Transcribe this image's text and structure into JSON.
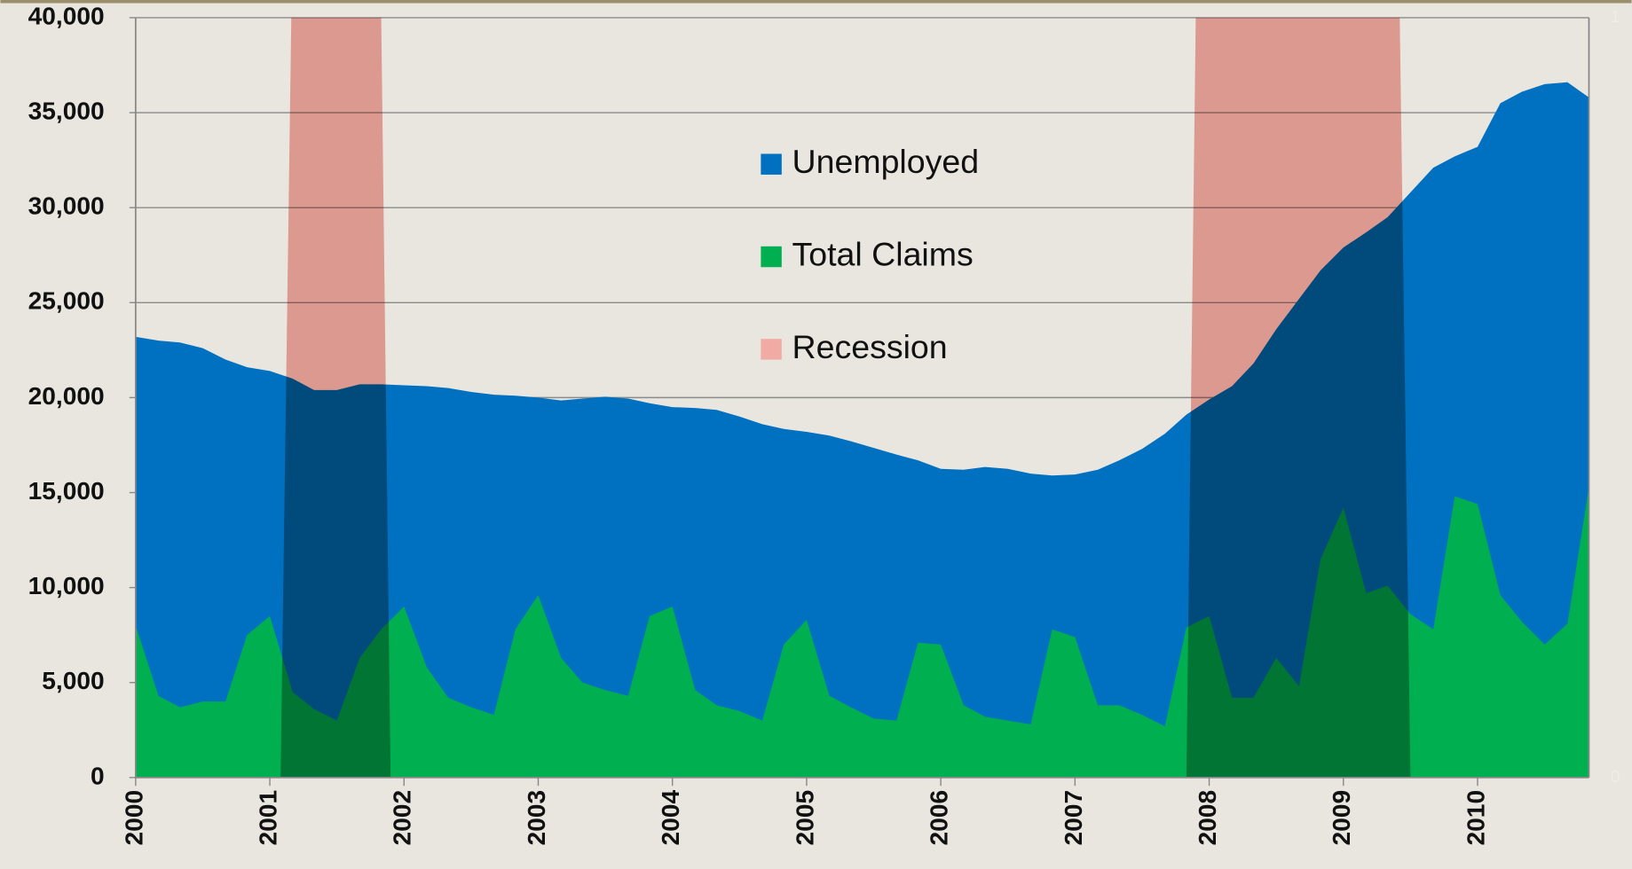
{
  "chart_data": {
    "type": "area",
    "x": [
      2000.0,
      2000.17,
      2000.33,
      2000.5,
      2000.67,
      2000.83,
      2001.0,
      2001.17,
      2001.33,
      2001.5,
      2001.67,
      2001.83,
      2002.0,
      2002.17,
      2002.33,
      2002.5,
      2002.67,
      2002.83,
      2003.0,
      2003.17,
      2003.33,
      2003.5,
      2003.67,
      2003.83,
      2004.0,
      2004.17,
      2004.33,
      2004.5,
      2004.67,
      2004.83,
      2005.0,
      2005.17,
      2005.33,
      2005.5,
      2005.67,
      2005.83,
      2006.0,
      2006.17,
      2006.33,
      2006.5,
      2006.67,
      2006.83,
      2007.0,
      2007.17,
      2007.33,
      2007.5,
      2007.67,
      2007.83,
      2008.0,
      2008.17,
      2008.33,
      2008.5,
      2008.67,
      2008.83,
      2009.0,
      2009.17,
      2009.33,
      2009.5,
      2009.67,
      2009.83,
      2010.0,
      2010.17,
      2010.33,
      2010.5,
      2010.67,
      2010.83
    ],
    "series": [
      {
        "name": "Unemployed",
        "color": "#0070c0",
        "values": [
          23200,
          23000,
          22900,
          22600,
          22000,
          21600,
          21400,
          21000,
          20400,
          20400,
          20700,
          20700,
          20650,
          20600,
          20500,
          20300,
          20150,
          20100,
          20000,
          19850,
          19950,
          20050,
          19950,
          19700,
          19500,
          19450,
          19350,
          19000,
          18600,
          18350,
          18200,
          18000,
          17700,
          17350,
          17000,
          16700,
          16250,
          16200,
          16350,
          16250,
          16000,
          15900,
          15950,
          16200,
          16700,
          17300,
          18100,
          19100,
          19900,
          20600,
          21800,
          23600,
          25200,
          26700,
          27900,
          28700,
          29500,
          30800,
          32100,
          32700,
          33200,
          35500,
          36100,
          36500,
          36600,
          35800
        ]
      },
      {
        "name": "Total Claims",
        "color": "#00b050",
        "values": [
          8000,
          4300,
          3700,
          4000,
          4000,
          7500,
          8500,
          4500,
          3600,
          3000,
          6300,
          7800,
          9000,
          5800,
          4200,
          3700,
          3300,
          7800,
          9600,
          6300,
          5000,
          4600,
          4300,
          8500,
          9000,
          4600,
          3800,
          3500,
          3000,
          7000,
          8300,
          4300,
          3700,
          3100,
          3000,
          7100,
          7000,
          3800,
          3200,
          3000,
          2800,
          7800,
          7400,
          3800,
          3800,
          3300,
          2700,
          7900,
          8500,
          4200,
          4200,
          6300,
          4800,
          11500,
          14200,
          9700,
          10100,
          8600,
          7800,
          14800,
          14400,
          9600,
          8200,
          7000,
          8100,
          15300
        ]
      },
      {
        "name": "Recession",
        "color": "#f2aaa5",
        "axis": "y2",
        "x": [
          2001.08,
          2001.16,
          2001.83,
          2001.9,
          2007.83,
          2007.9,
          2009.42,
          2009.5
        ],
        "values": [
          0,
          1,
          1,
          0,
          0,
          1,
          1,
          0
        ]
      }
    ],
    "xlim": [
      2000,
      2010.83
    ],
    "xticks": [
      2000,
      2001,
      2002,
      2003,
      2004,
      2005,
      2006,
      2007,
      2008,
      2009,
      2010
    ],
    "ylim": [
      0,
      40000
    ],
    "yticks": [
      0,
      {
        "value": 5000,
        "label": "5,000"
      },
      {
        "value": 10000,
        "label": "10,000"
      },
      {
        "value": 15000,
        "label": "15,000"
      },
      {
        "value": 20000,
        "label": "20,000"
      },
      {
        "value": 25000,
        "label": "25,000"
      },
      {
        "value": 30000,
        "label": "30,000"
      },
      {
        "value": 35000,
        "label": "35,000"
      },
      {
        "value": 40000,
        "label": "40,000"
      }
    ],
    "y2lim": [
      0,
      1
    ],
    "y2ticks": [
      0,
      1
    ],
    "grid": true,
    "legend": "top-center"
  }
}
